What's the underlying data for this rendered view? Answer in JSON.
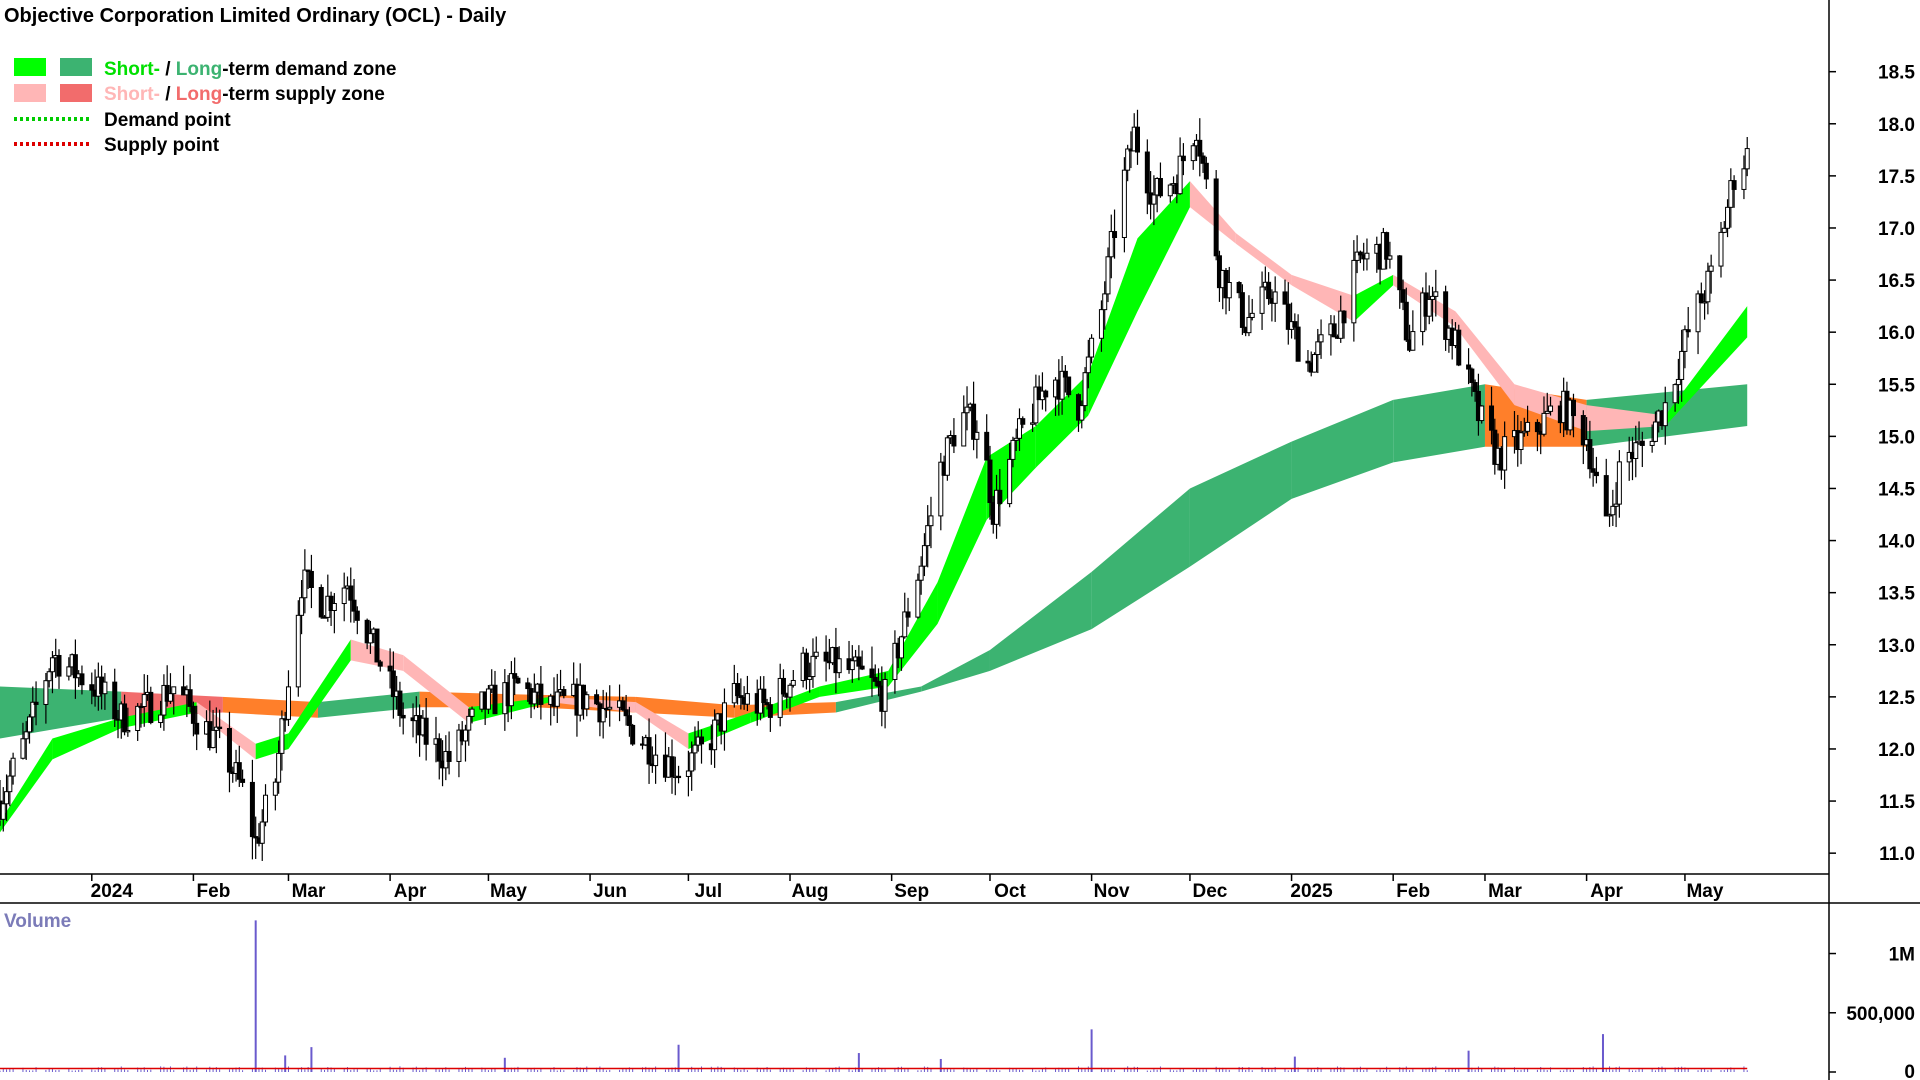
{
  "title": "Objective Corporation Limited Ordinary (OCL) - Daily",
  "legend": {
    "demand_zone": {
      "short": "Short-",
      "sep": " / ",
      "long": "Long",
      "rest": "-term demand zone"
    },
    "supply_zone": {
      "short": "Short-",
      "sep": " / ",
      "long": "Long",
      "rest": "-term supply zone"
    },
    "demand_point": "Demand point",
    "supply_point": "Supply point"
  },
  "colors": {
    "short_demand": "#00ff00",
    "long_demand": "#3cb371",
    "short_supply": "#ffb6b6",
    "long_supply": "#f26c6c",
    "long_supply_overlap": "#ff7f2a",
    "demand_point": "#00cc00",
    "supply_point": "#dd0000",
    "volume": "#6a5acd",
    "volume_ma": "#dd0000",
    "volume_label": "#7b7bb8"
  },
  "chart_data": {
    "type": "candlestick",
    "title": "Objective Corporation Limited Ordinary (OCL) - Daily",
    "x_tick_labels": [
      "2024",
      "Feb",
      "Mar",
      "Apr",
      "May",
      "Jun",
      "Jul",
      "Aug",
      "Sep",
      "Oct",
      "Nov",
      "Dec",
      "2025",
      "Feb",
      "Mar",
      "Apr",
      "May"
    ],
    "x_tick_dates": [
      "2024-01-01",
      "2024-02-01",
      "2024-03-01",
      "2024-04-01",
      "2024-05-01",
      "2024-06-01",
      "2024-07-01",
      "2024-08-01",
      "2024-09-01",
      "2024-10-01",
      "2024-11-01",
      "2024-12-01",
      "2025-01-01",
      "2025-02-01",
      "2025-03-01",
      "2025-04-01",
      "2025-05-01"
    ],
    "x_range": [
      "2023-12-04",
      "2025-05-30"
    ],
    "y_tick_labels": [
      "11.0",
      "11.5",
      "12.0",
      "12.5",
      "13.0",
      "13.5",
      "14.0",
      "14.5",
      "15.0",
      "15.5",
      "16.0",
      "16.5",
      "17.0",
      "17.5",
      "18.0",
      "18.5"
    ],
    "ylim": [
      10.8,
      18.9
    ],
    "price_path": [
      [
        "2023-12-04",
        11.5
      ],
      [
        "2023-12-12",
        12.1
      ],
      [
        "2023-12-20",
        12.9
      ],
      [
        "2024-01-02",
        12.6
      ],
      [
        "2024-01-10",
        12.3
      ],
      [
        "2024-01-18",
        12.4
      ],
      [
        "2024-01-26",
        12.6
      ],
      [
        "2024-02-02",
        12.3
      ],
      [
        "2024-02-10",
        12.0
      ],
      [
        "2024-02-16",
        11.6
      ],
      [
        "2024-02-20",
        11.1
      ],
      [
        "2024-02-26",
        11.7
      ],
      [
        "2024-03-01",
        12.7
      ],
      [
        "2024-03-05",
        13.6
      ],
      [
        "2024-03-12",
        13.4
      ],
      [
        "2024-03-19",
        13.6
      ],
      [
        "2024-03-28",
        12.9
      ],
      [
        "2024-04-05",
        12.3
      ],
      [
        "2024-04-12",
        12.1
      ],
      [
        "2024-04-19",
        11.9
      ],
      [
        "2024-04-29",
        12.4
      ],
      [
        "2024-05-10",
        12.6
      ],
      [
        "2024-05-20",
        12.4
      ],
      [
        "2024-05-31",
        12.5
      ],
      [
        "2024-06-10",
        12.3
      ],
      [
        "2024-06-20",
        12.0
      ],
      [
        "2024-06-28",
        11.8
      ],
      [
        "2024-07-06",
        12.0
      ],
      [
        "2024-07-15",
        12.5
      ],
      [
        "2024-07-25",
        12.4
      ],
      [
        "2024-08-05",
        12.8
      ],
      [
        "2024-08-15",
        12.8
      ],
      [
        "2024-08-23",
        12.7
      ],
      [
        "2024-08-30",
        12.5
      ],
      [
        "2024-09-04",
        13.1
      ],
      [
        "2024-09-10",
        13.8
      ],
      [
        "2024-09-16",
        14.7
      ],
      [
        "2024-09-22",
        15.2
      ],
      [
        "2024-09-28",
        15.1
      ],
      [
        "2024-10-02",
        14.3
      ],
      [
        "2024-10-10",
        15.0
      ],
      [
        "2024-10-20",
        15.6
      ],
      [
        "2024-10-28",
        15.3
      ],
      [
        "2024-11-04",
        16.2
      ],
      [
        "2024-11-09",
        17.2
      ],
      [
        "2024-11-14",
        17.9
      ],
      [
        "2024-11-20",
        17.3
      ],
      [
        "2024-11-27",
        17.5
      ],
      [
        "2024-12-03",
        18.0
      ],
      [
        "2024-12-10",
        16.6
      ],
      [
        "2024-12-18",
        16.1
      ],
      [
        "2024-12-26",
        16.4
      ],
      [
        "2025-01-06",
        15.7
      ],
      [
        "2025-01-14",
        16.0
      ],
      [
        "2025-01-22",
        16.7
      ],
      [
        "2025-01-30",
        16.8
      ],
      [
        "2025-02-06",
        15.9
      ],
      [
        "2025-02-12",
        16.4
      ],
      [
        "2025-02-20",
        15.9
      ],
      [
        "2025-02-27",
        15.2
      ],
      [
        "2025-03-05",
        14.8
      ],
      [
        "2025-03-14",
        15.0
      ],
      [
        "2025-03-24",
        15.3
      ],
      [
        "2025-04-01",
        15.0
      ],
      [
        "2025-04-07",
        14.1
      ],
      [
        "2025-04-12",
        14.8
      ],
      [
        "2025-04-18",
        14.9
      ],
      [
        "2025-04-25",
        15.3
      ],
      [
        "2025-05-03",
        16.1
      ],
      [
        "2025-05-10",
        16.6
      ],
      [
        "2025-05-16",
        17.5
      ],
      [
        "2025-05-20",
        17.7
      ]
    ],
    "short_zone": [
      [
        "2023-12-04",
        11.2,
        11.3
      ],
      [
        "2023-12-20",
        11.9,
        12.1
      ],
      [
        "2024-01-10",
        12.2,
        12.3
      ],
      [
        "2024-02-02",
        12.35,
        12.45
      ],
      [
        "2024-02-20",
        11.9,
        12.05
      ],
      [
        "2024-03-01",
        12.0,
        12.15
      ],
      [
        "2024-03-20",
        12.85,
        13.05
      ],
      [
        "2024-04-05",
        12.75,
        12.9
      ],
      [
        "2024-04-25",
        12.25,
        12.4
      ],
      [
        "2024-05-20",
        12.45,
        12.5
      ],
      [
        "2024-06-15",
        12.35,
        12.45
      ],
      [
        "2024-07-01",
        12.0,
        12.15
      ],
      [
        "2024-07-20",
        12.25,
        12.35
      ],
      [
        "2024-08-10",
        12.5,
        12.6
      ],
      [
        "2024-08-31",
        12.6,
        12.75
      ],
      [
        "2024-09-15",
        13.2,
        13.6
      ],
      [
        "2024-09-30",
        14.2,
        14.8
      ],
      [
        "2024-10-15",
        14.7,
        15.1
      ],
      [
        "2024-10-31",
        15.2,
        15.6
      ],
      [
        "2024-11-15",
        16.2,
        16.9
      ],
      [
        "2024-12-01",
        17.2,
        17.45
      ],
      [
        "2024-12-15",
        16.85,
        16.95
      ],
      [
        "2025-01-01",
        16.45,
        16.55
      ],
      [
        "2025-01-20",
        16.1,
        16.35
      ],
      [
        "2025-02-01",
        16.45,
        16.55
      ],
      [
        "2025-02-20",
        16.05,
        16.2
      ],
      [
        "2025-03-10",
        15.3,
        15.5
      ],
      [
        "2025-04-01",
        15.05,
        15.3
      ],
      [
        "2025-04-25",
        15.1,
        15.2
      ],
      [
        "2025-05-20",
        15.95,
        16.25
      ]
    ],
    "long_zone": [
      [
        "2023-12-04",
        12.1,
        12.6
      ],
      [
        "2024-01-10",
        12.3,
        12.55
      ],
      [
        "2024-02-10",
        12.35,
        12.5
      ],
      [
        "2024-03-10",
        12.3,
        12.45
      ],
      [
        "2024-04-10",
        12.4,
        12.55
      ],
      [
        "2024-05-15",
        12.4,
        12.52
      ],
      [
        "2024-06-15",
        12.35,
        12.5
      ],
      [
        "2024-07-15",
        12.3,
        12.42
      ],
      [
        "2024-08-15",
        12.35,
        12.45
      ],
      [
        "2024-09-10",
        12.55,
        12.6
      ],
      [
        "2024-10-01",
        12.75,
        12.95
      ],
      [
        "2024-11-01",
        13.15,
        13.7
      ],
      [
        "2024-12-01",
        13.75,
        14.5
      ],
      [
        "2025-01-01",
        14.4,
        14.95
      ],
      [
        "2025-02-01",
        14.75,
        15.35
      ],
      [
        "2025-03-01",
        14.9,
        15.5
      ],
      [
        "2025-04-01",
        14.9,
        15.35
      ],
      [
        "2025-05-20",
        15.1,
        15.5
      ]
    ],
    "volume": {
      "label": "Volume",
      "y_tick_labels": [
        "0",
        "500,000",
        "1M"
      ],
      "ylim": [
        0,
        1300000
      ],
      "spikes": [
        [
          "2024-02-20",
          1280000
        ],
        [
          "2024-03-08",
          210000
        ],
        [
          "2024-02-29",
          140000
        ],
        [
          "2024-08-22",
          160000
        ],
        [
          "2024-06-28",
          230000
        ],
        [
          "2024-11-01",
          360000
        ],
        [
          "2025-01-02",
          130000
        ],
        [
          "2025-02-24",
          180000
        ],
        [
          "2025-04-06",
          320000
        ],
        [
          "2024-05-06",
          120000
        ],
        [
          "2024-09-16",
          110000
        ]
      ],
      "baseline": 30000
    }
  }
}
